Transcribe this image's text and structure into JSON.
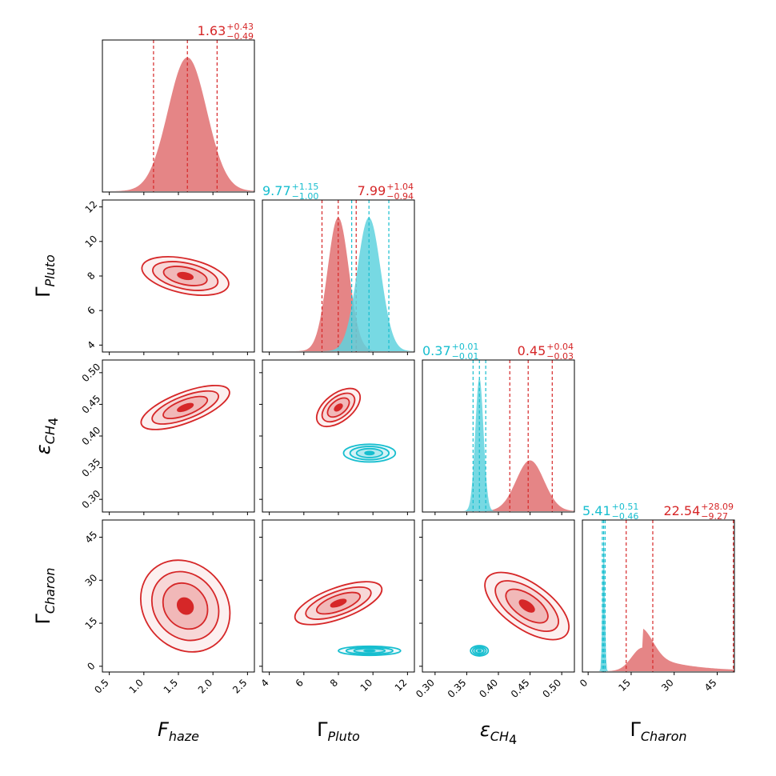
{
  "chart_data": {
    "type": "corner",
    "colors": {
      "red": "#d62728",
      "cyan": "#17becf",
      "red_fill": "#e17071",
      "cyan_fill": "#5fd2de"
    },
    "parameters": [
      {
        "key": "F_haze",
        "label_main": "F",
        "label_sub": "haze",
        "label_style": "italic",
        "range": [
          0.4,
          2.6
        ],
        "ticks": [
          0.5,
          1.0,
          1.5,
          2.0,
          2.5
        ],
        "tick_labels": [
          "0.5",
          "1.0",
          "1.5",
          "2.0",
          "2.5"
        ]
      },
      {
        "key": "Gamma_Pluto",
        "label_main": "Γ",
        "label_sub": "Pluto",
        "label_style": "normal",
        "range": [
          3.6,
          12.4
        ],
        "ticks": [
          4,
          6,
          8,
          10,
          12
        ],
        "tick_labels": [
          "4",
          "6",
          "8",
          "10",
          "12"
        ]
      },
      {
        "key": "eps_CH4",
        "label_main": "ε",
        "label_sub": "CH",
        "label_sub2": "4",
        "label_style": "italic",
        "range": [
          0.28,
          0.52
        ],
        "ticks": [
          0.3,
          0.35,
          0.4,
          0.45,
          0.5
        ],
        "tick_labels": [
          "0.30",
          "0.35",
          "0.40",
          "0.45",
          "0.50"
        ]
      },
      {
        "key": "Gamma_Charon",
        "label_main": "Γ",
        "label_sub": "Charon",
        "label_style": "normal",
        "range": [
          -2,
          51
        ],
        "ticks": [
          0,
          15,
          30,
          45
        ],
        "tick_labels": [
          "0",
          "15",
          "30",
          "45"
        ]
      }
    ],
    "diagonal": [
      {
        "param": 0,
        "series": [
          {
            "color": "red",
            "mean": 1.63,
            "sigma": 0.28,
            "quantiles": [
              1.14,
              1.63,
              2.06
            ],
            "label": "1.63",
            "plus": "+0.43",
            "minus": "−0.49"
          }
        ]
      },
      {
        "param": 1,
        "series": [
          {
            "color": "red",
            "mean": 7.99,
            "sigma": 0.62,
            "quantiles": [
              7.05,
              7.99,
              9.03
            ],
            "label": "7.99",
            "plus": "+1.04",
            "minus": "−0.94"
          },
          {
            "color": "cyan",
            "mean": 9.77,
            "sigma": 0.68,
            "quantiles": [
              8.77,
              9.77,
              10.92
            ],
            "label": "9.77",
            "plus": "+1.15",
            "minus": "−1.00"
          }
        ]
      },
      {
        "param": 2,
        "series": [
          {
            "color": "red",
            "mean": 0.45,
            "sigma": 0.022,
            "quantiles": [
              0.418,
              0.447,
              0.485
            ],
            "label": "0.45",
            "plus": "+0.04",
            "minus": "−0.03"
          },
          {
            "color": "cyan",
            "mean": 0.37,
            "sigma": 0.0065,
            "quantiles": [
              0.36,
              0.37,
              0.38
            ],
            "label": "0.37",
            "plus": "+0.01",
            "minus": "−0.01"
          }
        ]
      },
      {
        "param": 3,
        "series": [
          {
            "color": "red",
            "mean": 22.54,
            "sigma": 9.0,
            "quantiles": [
              13.27,
              22.54,
              50.63
            ],
            "label": "22.54",
            "plus": "+28.09",
            "minus": "−9.27"
          },
          {
            "color": "cyan",
            "mean": 5.41,
            "sigma": 0.4,
            "quantiles": [
              4.95,
              5.41,
              5.92
            ],
            "label": "5.41",
            "plus": "+0.51",
            "minus": "−0.46"
          }
        ]
      }
    ],
    "contours": [
      {
        "row": 1,
        "col": 0,
        "series": [
          {
            "color": "red",
            "center": [
              1.6,
              8.0
            ],
            "sx": 0.32,
            "sy": 0.5,
            "angle_deg": -12
          }
        ]
      },
      {
        "row": 2,
        "col": 0,
        "series": [
          {
            "color": "red",
            "center": [
              1.6,
              0.445
            ],
            "sx": 0.34,
            "sy": 0.012,
            "angle_deg": 21
          }
        ]
      },
      {
        "row": 2,
        "col": 1,
        "series": [
          {
            "color": "red",
            "center": [
              8.0,
              0.445
            ],
            "sx": 0.4,
            "sy": 0.02,
            "angle_deg": -52
          },
          {
            "color": "cyan",
            "center": [
              9.8,
              0.373
            ],
            "sx": 0.75,
            "sy": 0.007,
            "angle_deg": 0
          }
        ]
      },
      {
        "row": 3,
        "col": 0,
        "series": [
          {
            "color": "red",
            "center": [
              1.6,
              21
            ],
            "sx": 0.3,
            "sy": 8.5,
            "angle_deg": 40
          }
        ]
      },
      {
        "row": 3,
        "col": 1,
        "series": [
          {
            "color": "red",
            "center": [
              8.0,
              22
            ],
            "sx": 0.45,
            "sy": 8.0,
            "angle_deg": -70
          },
          {
            "color": "cyan",
            "center": [
              9.8,
              5.4
            ],
            "sx": 0.9,
            "sy": 0.8,
            "angle_deg": 0
          }
        ]
      },
      {
        "row": 3,
        "col": 2,
        "series": [
          {
            "color": "red",
            "center": [
              0.445,
              21
            ],
            "sx": 0.018,
            "sy": 8.5,
            "angle_deg": 55
          },
          {
            "color": "cyan",
            "center": [
              0.37,
              5.4
            ],
            "sx": 0.007,
            "sy": 0.9,
            "angle_deg": 0
          }
        ]
      }
    ]
  }
}
